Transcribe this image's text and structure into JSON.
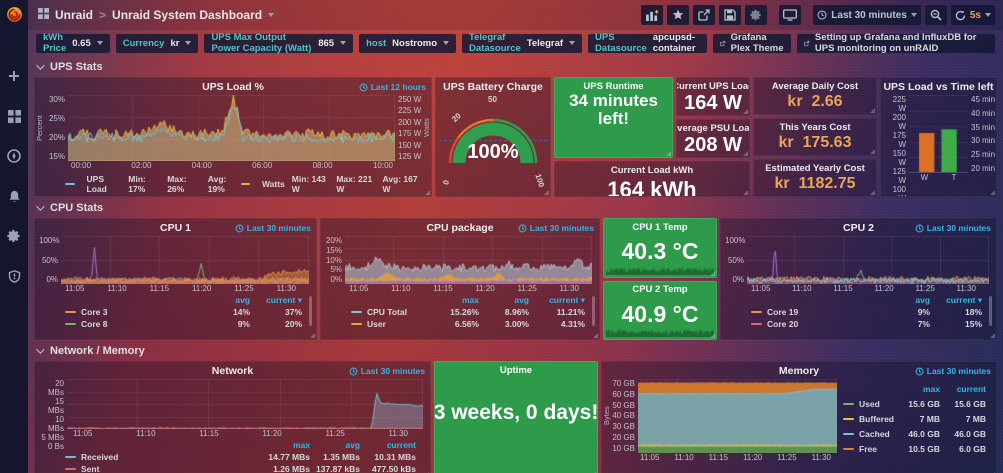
{
  "chrome": {
    "breadcrumb": {
      "folder": "Unraid",
      "sep": ">",
      "title": "Unraid System Dashboard"
    },
    "toolbar": {
      "time_range": "Last 30 minutes",
      "refresh": "5s"
    },
    "links": [
      {
        "label": "Grafana Plex Theme"
      },
      {
        "label": "Setting up Grafana and InfluxDB for UPS monitoring on unRAID"
      }
    ],
    "variables": [
      {
        "label": "kWh Price",
        "value": "0.65"
      },
      {
        "label": "Currency",
        "value": "kr"
      },
      {
        "label": "UPS Max Output Power Capacity (Watt)",
        "value": "865"
      },
      {
        "label": "host",
        "value": "Nostromo"
      },
      {
        "label": "Telegraf Datasource",
        "value": "Telegraf"
      },
      {
        "label": "UPS Datasource",
        "value": "apcupsd-container"
      }
    ]
  },
  "rows": {
    "ups": "UPS Stats",
    "cpu": "CPU Stats",
    "netmem": "Network / Memory"
  },
  "panels": {
    "ups_load": {
      "title": "UPS Load %",
      "timerange": "Last 12 hours",
      "y_left_label": "Percent",
      "y_right_label": "Watts",
      "y_left": [
        "30%",
        "25%",
        "20%",
        "15%"
      ],
      "y_right": [
        "250 W",
        "225 W",
        "200 W",
        "175 W",
        "150 W",
        "125 W"
      ],
      "x": [
        "00:00",
        "02:00",
        "04:00",
        "06:00",
        "08:00",
        "10:00"
      ],
      "legend": [
        {
          "label": "UPS Load",
          "color": "#73c0d4",
          "stats": [
            "Min: 17%",
            "Max: 26%",
            "Avg: 19%"
          ]
        },
        {
          "label": "Watts",
          "color": "#e8b339",
          "stats": [
            "Min: 143 W",
            "Max: 221 W",
            "Avg: 167 W"
          ]
        }
      ]
    },
    "battery": {
      "title": "UPS Battery Charge",
      "value": "100%",
      "scale": [
        "0",
        "20",
        "50",
        "100"
      ]
    },
    "current_load": {
      "title": "Current UPS Load",
      "value": "164 W"
    },
    "avg_psu": {
      "title": "Average PSU Load",
      "value": "208 W"
    },
    "runtime": {
      "title": "UPS Runtime",
      "value": "34 minutes left!"
    },
    "load_kwh": {
      "title": "Current Load kWh",
      "value": "164 kWh"
    },
    "daily_cost": {
      "title": "Average Daily Cost",
      "value": "kr  2.66"
    },
    "year_cost": {
      "title": "This Years Cost",
      "value": "kr  175.63"
    },
    "est_cost": {
      "title": "Estimated Yearly Cost",
      "value": "kr  1182.75"
    },
    "load_vs_time": {
      "title": "UPS Load vs Time left",
      "y_left": [
        "225 W",
        "200 W",
        "175 W",
        "150 W",
        "125 W",
        "100 W"
      ],
      "y_right": [
        "45 min",
        "40 min",
        "35 min",
        "30 min",
        "25 min",
        "20 min"
      ],
      "x": [
        "W",
        "T"
      ]
    },
    "cpu1": {
      "title": "CPU 1",
      "timerange": "Last 30 minutes",
      "y": [
        "100%",
        "50%",
        "0%"
      ],
      "x": [
        "11:05",
        "11:10",
        "11:15",
        "11:20",
        "11:25",
        "11:30"
      ],
      "legend_cols": [
        "avg",
        "current ▾"
      ],
      "legend": [
        {
          "label": "Core 3",
          "color": "#e8963c",
          "avg": "14%",
          "current": "37%"
        },
        {
          "label": "Core 8",
          "color": "#7eb26d",
          "avg": "9%",
          "current": "20%"
        }
      ]
    },
    "cpu_pkg": {
      "title": "CPU package",
      "timerange": "Last 30 minutes",
      "y": [
        "20%",
        "15%",
        "10%",
        "5%",
        "0%"
      ],
      "x": [
        "11:05",
        "11:10",
        "11:15",
        "11:20",
        "11:25",
        "11:30"
      ],
      "legend_cols": [
        "max",
        "avg",
        "current ▾"
      ],
      "legend": [
        {
          "label": "CPU Total",
          "color": "#6ed0e0",
          "max": "15.26%",
          "avg": "8.96%",
          "current": "11.21%"
        },
        {
          "label": "User",
          "color": "#e5a13c",
          "max": "6.56%",
          "avg": "3.00%",
          "current": "4.31%"
        }
      ]
    },
    "cpu1_temp": {
      "title": "CPU 1 Temp",
      "value": "40.3 °C"
    },
    "cpu2_temp": {
      "title": "CPU 2 Temp",
      "value": "40.9 °C"
    },
    "cpu2": {
      "title": "CPU 2",
      "timerange": "Last 30 minutes",
      "y": [
        "100%",
        "50%",
        "0%"
      ],
      "x": [
        "11:05",
        "11:10",
        "11:15",
        "11:20",
        "11:25",
        "11:30"
      ],
      "legend_cols": [
        "avg",
        "current ▾"
      ],
      "legend": [
        {
          "label": "Core 19",
          "color": "#e8963c",
          "avg": "9%",
          "current": "18%"
        },
        {
          "label": "Core 20",
          "color": "#d46a6a",
          "avg": "7%",
          "current": "15%"
        }
      ]
    },
    "network": {
      "title": "Network",
      "timerange": "Last 30 minutes",
      "y": [
        "20 MBs",
        "15 MBs",
        "10 MBs",
        "5 MBs",
        "0 Bs"
      ],
      "x": [
        "11:05",
        "11:10",
        "11:15",
        "11:20",
        "11:25",
        "11:30"
      ],
      "legend_cols": [
        "max",
        "avg",
        "current"
      ],
      "legend": [
        {
          "label": "Received",
          "color": "#73c0d4",
          "max": "14.77 MBs",
          "avg": "1.35 MBs",
          "current": "10.31 MBs"
        },
        {
          "label": "Sent",
          "color": "#d46a6a",
          "max": "1.26 MBs",
          "avg": "137.87 kBs",
          "current": "477.50 kBs"
        }
      ]
    },
    "uptime": {
      "title": "Uptime",
      "value": "3 weeks, 0 days!"
    },
    "memory": {
      "title": "Memory",
      "timerange": "Last 30 minutes",
      "ylabel": "Bytes",
      "y": [
        "70 GB",
        "60 GB",
        "50 GB",
        "40 GB",
        "30 GB",
        "20 GB",
        "10 GB"
      ],
      "x": [
        "11:05",
        "11:10",
        "11:15",
        "11:20",
        "11:25",
        "11:30"
      ],
      "legend_cols": [
        "max",
        "current"
      ],
      "legend": [
        {
          "label": "Used",
          "color": "#7eb26d",
          "max": "15.6 GB",
          "current": "15.6 GB"
        },
        {
          "label": "Buffered",
          "color": "#e5c044",
          "max": "7 MB",
          "current": "7 MB"
        },
        {
          "label": "Cached",
          "color": "#79c2d4",
          "max": "46.0 GB",
          "current": "46.0 GB"
        },
        {
          "label": "Free",
          "color": "#d9822b",
          "max": "10.5 GB",
          "current": "6.0 GB"
        }
      ]
    }
  },
  "render": {
    "ups": {
      "grid": {
        "h": 4,
        "v": 6
      },
      "series": [
        {
          "seed": 3,
          "base": 0.4,
          "noise": 0.09,
          "bumps": [
            {
              "x": 0.285,
              "h": 0.16,
              "w": 0.06
            },
            {
              "x": 0.505,
              "h": 0.58,
              "w": 0.035
            }
          ],
          "fill": "rgba(214,196,132,0.55)",
          "color": "#e8b339"
        },
        {
          "seed": 9,
          "base": 0.355,
          "noise": 0.075,
          "bumps": [
            {
              "x": 0.285,
              "h": 0.14,
              "w": 0.06
            },
            {
              "x": 0.505,
              "h": 0.52,
              "w": 0.03
            }
          ],
          "color": "#73c0d4"
        }
      ]
    },
    "bars": {
      "grid": {
        "h": 6
      },
      "bars": [
        {
          "v": 0.512,
          "color": "#dd6f27"
        },
        {
          "v": 0.56,
          "color": "#3fae4a"
        }
      ]
    },
    "cpu1": {
      "grid": {
        "h": 3,
        "v": 6
      },
      "series": [
        {
          "seed": 5,
          "base": 0.09,
          "noise": 0.06,
          "fill": "rgba(224,123,84,0.35)",
          "color": "#e07b54"
        },
        {
          "seed": 11,
          "base": 0.08,
          "noise": 0.05,
          "color": "#7eb26d",
          "bumps": [
            {
              "x": 0.565,
              "h": 0.36,
              "w": 0.015
            }
          ]
        },
        {
          "seed": 17,
          "base": 0.075,
          "noise": 0.05,
          "color": "#a077d8",
          "bumps": [
            {
              "x": 0.135,
              "h": 0.66,
              "w": 0.013
            }
          ]
        },
        {
          "seed": 23,
          "base": 0.06,
          "noise": 0.045,
          "color": "#d46a6a"
        },
        {
          "seed": 29,
          "base": 0.07,
          "noise": 0.05,
          "color": "#e8963c",
          "fill": "rgba(232,150,60,0.45)",
          "segments": [
            {
              "from": 0.82,
              "to": 1,
              "b0": 0.18,
              "b1": 0.3
            }
          ]
        }
      ]
    },
    "pkg": {
      "grid": {
        "h": 5,
        "v": 6
      },
      "series": [
        {
          "seed": 7,
          "base": 0.34,
          "noise": 0.09,
          "fill": "rgba(158,158,172,0.8)",
          "color": "#b9b9c6",
          "bumps": [
            {
              "x": 0.13,
              "h": 0.16,
              "w": 0.05
            },
            {
              "x": 0.655,
              "h": 0.1,
              "w": 0.02
            },
            {
              "x": 0.945,
              "h": 0.24,
              "w": 0.025
            }
          ]
        },
        {
          "seed": 13,
          "base": 0.1,
          "noise": 0.045,
          "fill": "rgba(229,161,60,0.85)",
          "color": "#e5a13c",
          "bumps": [
            {
              "x": 0.17,
              "h": 0.12,
              "w": 0.04
            },
            {
              "x": 0.42,
              "h": 0.08,
              "w": 0.03
            },
            {
              "x": 0.62,
              "h": 0.1,
              "w": 0.03
            }
          ]
        },
        {
          "seed": 19,
          "base": 0.055,
          "noise": 0.02,
          "fill": "rgba(150,100,200,0.8)",
          "color": "#9c7bd0"
        }
      ]
    },
    "cpu2": {
      "grid": {
        "h": 3,
        "v": 6
      },
      "series": [
        {
          "seed": 6,
          "base": 0.1,
          "noise": 0.06,
          "fill": "rgba(224,123,84,0.35)",
          "color": "#e8963c"
        },
        {
          "seed": 12,
          "base": 0.08,
          "noise": 0.05,
          "color": "#7eb26d",
          "bumps": [
            {
              "x": 0.47,
              "h": 0.22,
              "w": 0.02
            }
          ]
        },
        {
          "seed": 18,
          "base": 0.075,
          "noise": 0.05,
          "color": "#a077d8",
          "bumps": [
            {
              "x": 0.115,
              "h": 0.78,
              "w": 0.01
            }
          ]
        },
        {
          "seed": 24,
          "base": 0.06,
          "noise": 0.045,
          "color": "#d46a6a"
        },
        {
          "seed": 30,
          "base": 0.07,
          "noise": 0.05,
          "color": "#6ed0e0"
        }
      ]
    },
    "net": {
      "grid": {
        "h": 5,
        "v": 6
      },
      "series": [
        {
          "seed": 21,
          "base": 0.012,
          "noise": 0.012,
          "segments": [
            {
              "from": 0.857,
              "to": 0.872,
              "b0": 0.012,
              "b1": 0.52
            },
            {
              "from": 0.872,
              "to": 1,
              "b0": 0.52,
              "b1": 0.46
            }
          ],
          "bumps": [
            {
              "x": 0.868,
              "h": 0.3,
              "w": 0.012
            }
          ],
          "fill": "rgba(140,160,185,0.45)",
          "color": "#73c0d4"
        },
        {
          "seed": 27,
          "base": 0.012,
          "noise": 0.006,
          "color": "#d46a6a"
        }
      ]
    },
    "mem": {
      "grid": {
        "h": 7,
        "v": 6
      },
      "series": [
        {
          "seed": 41,
          "base": 0.945,
          "noise": 0.004,
          "fill": "rgba(217,130,43,0.9)",
          "color": "#d9822b"
        },
        {
          "seed": 43,
          "base": 0.8,
          "noise": 0.004,
          "segments": [
            {
              "from": 0,
              "to": 0.72,
              "b0": 0.8,
              "b1": 0.8
            },
            {
              "from": 0.72,
              "to": 0.9,
              "b0": 0.8,
              "b1": 0.862
            },
            {
              "from": 0.9,
              "to": 1,
              "b0": 0.862,
              "b1": 0.862
            }
          ],
          "fill": "rgba(110,170,190,0.85)",
          "color": "#79c2d4"
        },
        {
          "seed": 45,
          "base": 0.105,
          "noise": 0.005,
          "fill": "rgba(229,192,68,0.95)",
          "color": "#e5c044"
        },
        {
          "seed": 47,
          "base": 0.088,
          "noise": 0.004,
          "fill": "rgba(90,140,80,0.95)",
          "color": "#7eb26d"
        }
      ]
    },
    "t1": {
      "series": [
        {
          "seed": 51,
          "base": 0.32,
          "noise": 0.22,
          "fill": "rgba(25,75,38,0.6)",
          "color": "#1f6b33"
        }
      ]
    },
    "t2": {
      "series": [
        {
          "seed": 57,
          "base": 0.32,
          "noise": 0.22,
          "fill": "rgba(25,75,38,0.6)",
          "color": "#1f6b33"
        }
      ]
    }
  }
}
